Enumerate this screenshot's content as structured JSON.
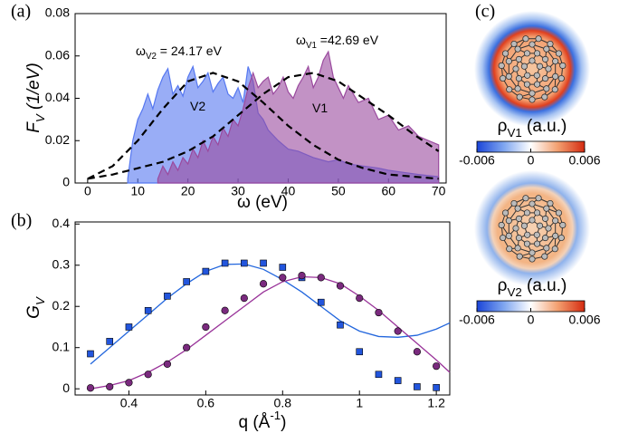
{
  "chart_data": [
    {
      "type": "area",
      "panel_label": "(a)",
      "xlabel": "ω (eV)",
      "ylabel": {
        "symbol": "F",
        "subscript": "V",
        "text": " (1/eV)"
      },
      "xlim": [
        -2.5,
        71.5
      ],
      "ylim": [
        0,
        0.08
      ],
      "xticks": [
        0,
        10,
        20,
        30,
        40,
        50,
        60,
        70
      ],
      "yticks": [
        0,
        0.02,
        0.04,
        0.06,
        0.08
      ],
      "series": [
        {
          "name": "V2",
          "color": "#5577f0",
          "x": [
            8,
            9,
            10,
            11,
            12,
            13,
            14,
            15,
            16,
            17,
            18,
            19,
            20,
            21,
            22,
            23,
            24,
            25,
            26,
            27,
            28,
            29,
            30,
            31,
            32,
            33,
            34,
            35,
            36,
            38,
            40,
            42,
            45,
            48,
            50,
            52,
            55,
            58,
            60,
            63,
            66,
            70
          ],
          "values": [
            0.002,
            0.02,
            0.03,
            0.035,
            0.042,
            0.035,
            0.044,
            0.05,
            0.054,
            0.042,
            0.046,
            0.041,
            0.05,
            0.055,
            0.045,
            0.048,
            0.052,
            0.043,
            0.047,
            0.05,
            0.042,
            0.04,
            0.045,
            0.038,
            0.055,
            0.048,
            0.033,
            0.03,
            0.025,
            0.02,
            0.016,
            0.015,
            0.012,
            0.01,
            0.011,
            0.009,
            0.008,
            0.007,
            0.006,
            0.005,
            0.004,
            0.003
          ]
        },
        {
          "name": "V1",
          "color": "#9a4a9e",
          "x": [
            14,
            15,
            16,
            17,
            18,
            19,
            20,
            21,
            22,
            23,
            24,
            25,
            26,
            27,
            28,
            29,
            30,
            31,
            32,
            33,
            34,
            35,
            36,
            37,
            38,
            39,
            40,
            41,
            42,
            43,
            44,
            45,
            46,
            47,
            48,
            49,
            50,
            51,
            52,
            54,
            56,
            58,
            60,
            62,
            64,
            66,
            68,
            70
          ],
          "values": [
            0.002,
            0.008,
            0.004,
            0.01,
            0.006,
            0.012,
            0.009,
            0.016,
            0.012,
            0.02,
            0.015,
            0.022,
            0.018,
            0.026,
            0.022,
            0.03,
            0.027,
            0.035,
            0.045,
            0.052,
            0.045,
            0.048,
            0.05,
            0.042,
            0.045,
            0.05,
            0.043,
            0.04,
            0.046,
            0.05,
            0.055,
            0.045,
            0.05,
            0.058,
            0.062,
            0.05,
            0.045,
            0.04,
            0.046,
            0.038,
            0.04,
            0.03,
            0.032,
            0.025,
            0.027,
            0.022,
            0.02,
            0.018
          ]
        }
      ],
      "fits": [
        {
          "color": "#000000",
          "x": [
            0,
            5,
            10,
            15,
            20,
            25,
            30,
            35,
            40,
            45,
            50,
            55,
            60,
            65,
            70
          ],
          "values": [
            0.002,
            0.008,
            0.02,
            0.035,
            0.048,
            0.052,
            0.048,
            0.038,
            0.027,
            0.018,
            0.011,
            0.007,
            0.004,
            0.003,
            0.002
          ]
        },
        {
          "color": "#000000",
          "x": [
            0,
            5,
            10,
            15,
            20,
            25,
            30,
            35,
            40,
            45,
            50,
            55,
            60,
            65,
            70
          ],
          "values": [
            0.002,
            0.004,
            0.007,
            0.01,
            0.015,
            0.022,
            0.032,
            0.042,
            0.05,
            0.052,
            0.048,
            0.04,
            0.032,
            0.023,
            0.015
          ]
        }
      ],
      "annotations": [
        {
          "symbol": "ω",
          "subscript": "V2",
          "text": " = 24.17 eV",
          "color": "#2233dd"
        },
        {
          "symbol": "ω",
          "subscript": "V1",
          "text": " =42.69 eV",
          "color": "#993399"
        },
        {
          "text": "V2",
          "color": "#2233dd"
        },
        {
          "text": "V1",
          "color": "#993399"
        }
      ]
    },
    {
      "type": "scatter",
      "panel_label": "(b)",
      "xlabel": {
        "symbol": "q (Å",
        "superscript": "-1",
        "text": ")"
      },
      "ylabel": {
        "symbol": "G",
        "subscript": "V"
      },
      "xlim": [
        0.26,
        1.235
      ],
      "ylim": [
        -0.015,
        0.405
      ],
      "xticks": [
        0.4,
        0.6,
        0.8,
        1,
        1.2
      ],
      "yticks": [
        0,
        0.1,
        0.2,
        0.3,
        0.4
      ],
      "series": [
        {
          "marker": "square",
          "color": "#2255dd",
          "x": [
            0.3,
            0.35,
            0.4,
            0.45,
            0.5,
            0.55,
            0.6,
            0.65,
            0.7,
            0.75,
            0.8,
            0.85,
            0.9,
            0.95,
            1.0,
            1.05,
            1.1,
            1.15,
            1.2
          ],
          "values": [
            0.085,
            0.115,
            0.15,
            0.19,
            0.225,
            0.26,
            0.285,
            0.305,
            0.305,
            0.305,
            0.295,
            0.27,
            0.21,
            0.155,
            0.09,
            0.035,
            0.02,
            0.005,
            0.003
          ],
          "fit": {
            "color": "#2266dd",
            "x": [
              0.3,
              0.35,
              0.4,
              0.45,
              0.5,
              0.55,
              0.6,
              0.65,
              0.7,
              0.75,
              0.8,
              0.85,
              0.9,
              0.95,
              1.0,
              1.05,
              1.1,
              1.15,
              1.2,
              1.235
            ],
            "values": [
              0.06,
              0.1,
              0.14,
              0.18,
              0.22,
              0.255,
              0.285,
              0.302,
              0.303,
              0.29,
              0.265,
              0.235,
              0.2,
              0.165,
              0.14,
              0.127,
              0.125,
              0.13,
              0.145,
              0.16
            ]
          }
        },
        {
          "marker": "circle",
          "color": "#7a2a7e",
          "x": [
            0.3,
            0.35,
            0.4,
            0.45,
            0.5,
            0.55,
            0.6,
            0.65,
            0.7,
            0.75,
            0.8,
            0.85,
            0.9,
            0.95,
            1.0,
            1.05,
            1.1,
            1.15,
            1.2
          ],
          "values": [
            0.002,
            0.005,
            0.015,
            0.035,
            0.06,
            0.1,
            0.15,
            0.19,
            0.22,
            0.255,
            0.27,
            0.275,
            0.27,
            0.25,
            0.22,
            0.185,
            0.14,
            0.09,
            0.055
          ],
          "fit": {
            "color": "#993399",
            "x": [
              0.3,
              0.35,
              0.4,
              0.45,
              0.5,
              0.55,
              0.6,
              0.65,
              0.7,
              0.75,
              0.8,
              0.85,
              0.9,
              0.95,
              1.0,
              1.05,
              1.1,
              1.15,
              1.2,
              1.235
            ],
            "values": [
              0.0,
              0.008,
              0.02,
              0.04,
              0.065,
              0.095,
              0.13,
              0.165,
              0.2,
              0.235,
              0.26,
              0.272,
              0.27,
              0.255,
              0.225,
              0.19,
              0.15,
              0.11,
              0.07,
              0.04
            ]
          }
        }
      ]
    }
  ],
  "panel_c": {
    "panel_label": "(c)",
    "maps": [
      {
        "label": {
          "symbol": "ρ",
          "subscript": "V1",
          "text": " (a.u.)"
        },
        "clim": [
          -0.006,
          0.006
        ],
        "ticks": [
          -0.006,
          0,
          0.006
        ]
      },
      {
        "label": {
          "symbol": "ρ",
          "subscript": "V2",
          "text": " (a.u.)"
        },
        "clim": [
          -0.006,
          0.006
        ],
        "ticks": [
          -0.006,
          0,
          0.006
        ]
      }
    ]
  }
}
